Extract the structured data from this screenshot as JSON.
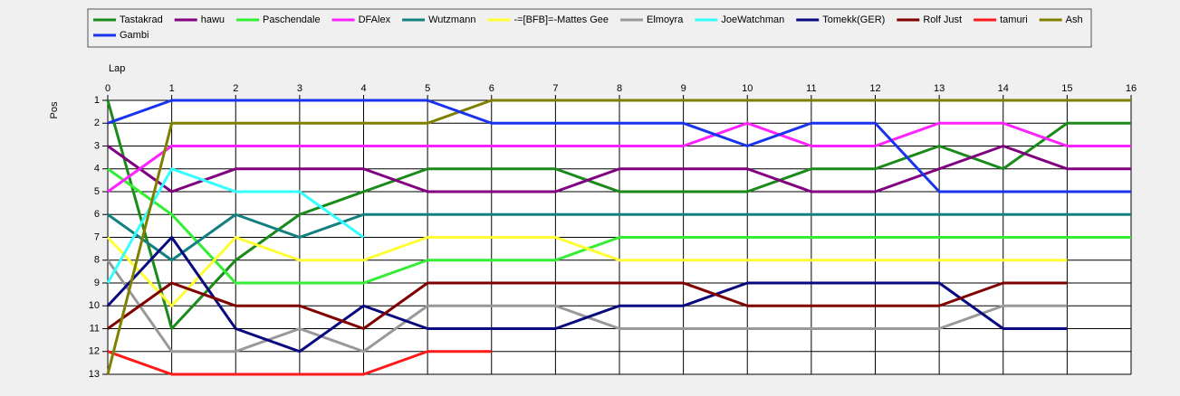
{
  "chart_data": {
    "type": "line",
    "x_label": "Lap",
    "y_label": "Pos",
    "x": [
      0,
      1,
      2,
      3,
      4,
      5,
      6,
      7,
      8,
      9,
      10,
      11,
      12,
      13,
      14,
      15,
      16
    ],
    "xlim": [
      0,
      16
    ],
    "xticks": [
      0,
      1,
      2,
      3,
      4,
      5,
      6,
      7,
      8,
      9,
      10,
      11,
      12,
      13,
      14,
      15,
      16
    ],
    "ylim": [
      13,
      1
    ],
    "yticks": [
      1,
      2,
      3,
      4,
      5,
      6,
      7,
      8,
      9,
      10,
      11,
      12,
      13
    ],
    "grid": true,
    "legend": "top",
    "series": [
      {
        "name": "Tastakrad",
        "color": "#1a8a1a",
        "values": [
          1,
          11,
          8,
          6,
          5,
          4,
          4,
          4,
          5,
          5,
          5,
          4,
          4,
          3,
          4,
          2,
          2
        ]
      },
      {
        "name": "hawu",
        "color": "#800080",
        "values": [
          3,
          5,
          4,
          4,
          4,
          5,
          5,
          5,
          4,
          4,
          4,
          5,
          5,
          4,
          3,
          4,
          4
        ]
      },
      {
        "name": "Paschendale",
        "color": "#33ee33",
        "values": [
          4,
          6,
          9,
          9,
          9,
          8,
          8,
          8,
          7,
          7,
          7,
          7,
          7,
          7,
          7,
          7,
          7
        ]
      },
      {
        "name": "DFAlex",
        "color": "#ff22ff",
        "values": [
          5,
          3,
          3,
          3,
          3,
          3,
          3,
          3,
          3,
          3,
          2,
          3,
          3,
          2,
          2,
          3,
          3
        ]
      },
      {
        "name": "Wutzmann",
        "color": "#138080",
        "values": [
          6,
          8,
          6,
          7,
          6,
          6,
          6,
          6,
          6,
          6,
          6,
          6,
          6,
          6,
          6,
          6,
          6
        ]
      },
      {
        "name": "-=[BFB]=-Mattes Gee",
        "color": "#ffff33",
        "values": [
          7,
          10,
          7,
          8,
          8,
          7,
          7,
          7,
          8,
          8,
          8,
          8,
          8,
          8,
          8,
          8,
          null
        ]
      },
      {
        "name": "Elmoyra",
        "color": "#999999",
        "values": [
          8,
          12,
          12,
          11,
          12,
          10,
          10,
          10,
          11,
          11,
          11,
          11,
          11,
          11,
          10,
          10,
          null
        ]
      },
      {
        "name": "JoeWatchman",
        "color": "#33ffff",
        "values": [
          9,
          4,
          5,
          5,
          7,
          null,
          null,
          null,
          null,
          null,
          null,
          null,
          null,
          null,
          null,
          null,
          null
        ]
      },
      {
        "name": "Tomekk(GER)",
        "color": "#0a0a80",
        "values": [
          10,
          7,
          11,
          12,
          10,
          11,
          11,
          11,
          10,
          10,
          9,
          9,
          9,
          9,
          11,
          11,
          null
        ]
      },
      {
        "name": "Rolf Just",
        "color": "#800000",
        "values": [
          11,
          9,
          10,
          10,
          11,
          9,
          9,
          9,
          9,
          9,
          10,
          10,
          10,
          10,
          9,
          9,
          null
        ]
      },
      {
        "name": "tamuri",
        "color": "#ff1a1a",
        "values": [
          12,
          13,
          13,
          13,
          13,
          12,
          12,
          null,
          null,
          null,
          null,
          null,
          null,
          null,
          null,
          null,
          null
        ]
      },
      {
        "name": "Ash",
        "color": "#808000",
        "values": [
          13,
          2,
          2,
          2,
          2,
          2,
          1,
          1,
          1,
          1,
          1,
          1,
          1,
          1,
          1,
          1,
          1
        ]
      },
      {
        "name": "Gambi",
        "color": "#1a33ee",
        "values": [
          2,
          1,
          1,
          1,
          1,
          1,
          2,
          2,
          2,
          2,
          3,
          2,
          2,
          5,
          5,
          5,
          5
        ]
      }
    ]
  }
}
